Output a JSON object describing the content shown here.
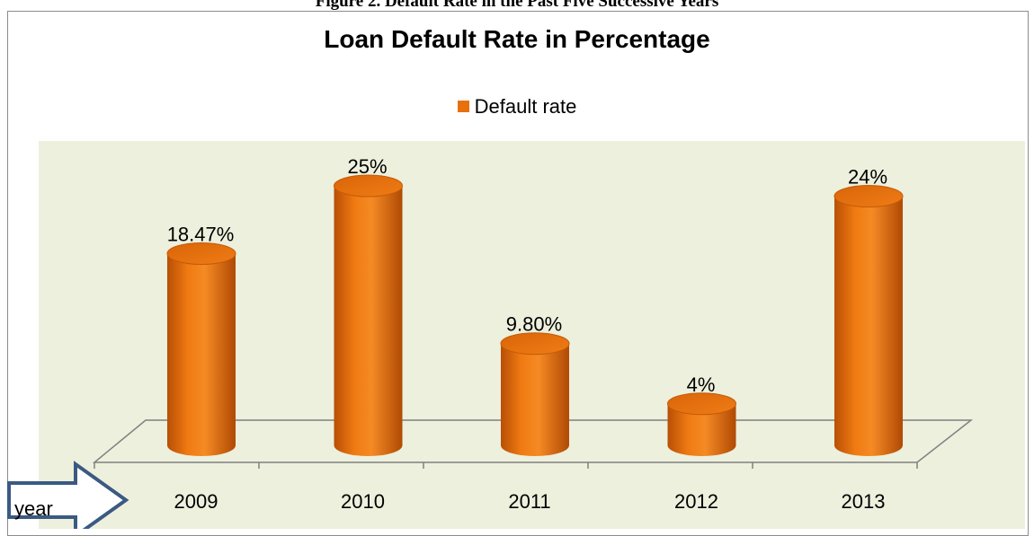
{
  "page": {
    "caption": "Figure 2. Default Rate in the Past Five Successive Years"
  },
  "colors": {
    "bar": "#e8700d",
    "bar_dark": "#b34d05",
    "bar_light": "#f59a45",
    "plot_bg": "#ecf0dd",
    "floor_line": "#808080",
    "arrow_outline": "#3b5a82"
  },
  "annotation": {
    "arrow_label": "year"
  },
  "chart_data": {
    "type": "bar",
    "style": "3d-cylinder",
    "title": "Loan Default Rate in Percentage",
    "legend": {
      "entries": [
        "Default rate"
      ],
      "placement": "top"
    },
    "categories": [
      "2009",
      "2010",
      "2011",
      "2012",
      "2013"
    ],
    "series": [
      {
        "name": "Default rate",
        "values": [
          18.47,
          25,
          9.8,
          4,
          24
        ],
        "labels": [
          "18.47%",
          "25%",
          "9.80%",
          "4%",
          "24%"
        ]
      }
    ],
    "ylim": [
      0,
      25
    ],
    "grid": false
  }
}
